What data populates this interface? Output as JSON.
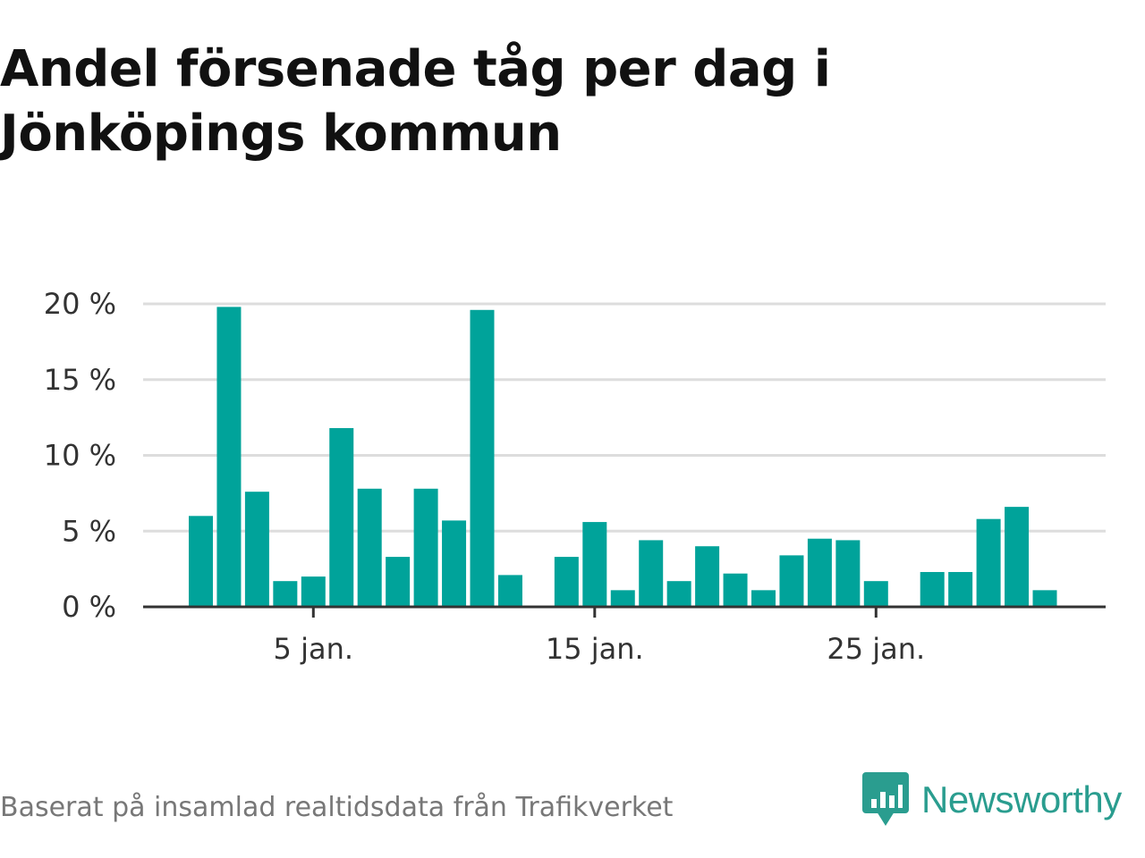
{
  "title": "Andel försenade tåg per dag i Jönköpings kommun",
  "source": "Baserat på insamlad realtidsdata från Trafikverket",
  "brand": {
    "name": "Newsworthy",
    "icon": "newsworthy-logo-icon"
  },
  "colors": {
    "bar": "#00a39a",
    "grid": "#dddddd",
    "axis": "#333333",
    "brand": "#2a9d8f"
  },
  "chart_data": {
    "type": "bar",
    "x": [
      1,
      2,
      3,
      4,
      5,
      6,
      7,
      8,
      9,
      10,
      11,
      12,
      13,
      14,
      15,
      16,
      17,
      18,
      19,
      20,
      21,
      22,
      23,
      24,
      25,
      26,
      27,
      28,
      29,
      30,
      31
    ],
    "values": [
      6.0,
      19.8,
      7.6,
      1.7,
      2.0,
      11.8,
      7.8,
      3.3,
      7.8,
      5.7,
      19.6,
      2.1,
      null,
      3.3,
      5.6,
      1.1,
      4.4,
      1.7,
      4.0,
      2.2,
      1.1,
      3.4,
      4.5,
      4.4,
      1.7,
      null,
      2.3,
      2.3,
      5.8,
      6.6,
      1.1
    ],
    "xticks": [
      {
        "x": 5,
        "label": "5 jan."
      },
      {
        "x": 15,
        "label": "15 jan."
      },
      {
        "x": 25,
        "label": "25 jan."
      }
    ],
    "yticks": [
      {
        "value": 0,
        "label": "0 %"
      },
      {
        "value": 5,
        "label": "5 %"
      },
      {
        "value": 10,
        "label": "10 %"
      },
      {
        "value": 15,
        "label": "15 %"
      },
      {
        "value": 20,
        "label": "20 %"
      }
    ],
    "ylim": [
      0,
      20
    ],
    "xlabel": "",
    "ylabel": "",
    "grid": true,
    "legend": false
  }
}
